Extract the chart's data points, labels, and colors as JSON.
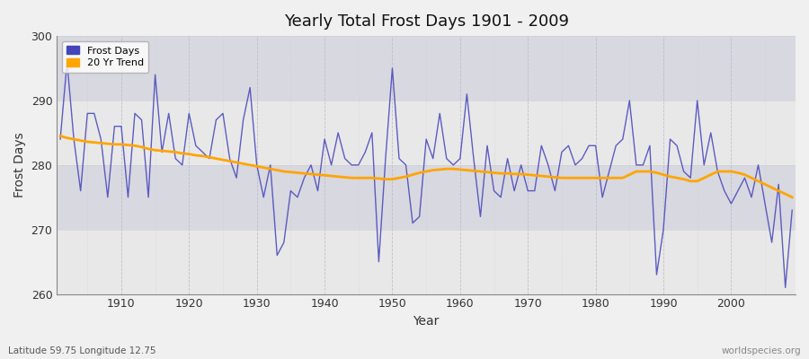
{
  "title": "Yearly Total Frost Days 1901 - 2009",
  "xlabel": "Year",
  "ylabel": "Frost Days",
  "subtitle": "Latitude 59.75 Longitude 12.75",
  "watermark": "worldspecies.org",
  "ylim": [
    260,
    300
  ],
  "xlim": [
    1901,
    2009
  ],
  "line_color": "#4444bb",
  "trend_color": "#FFA500",
  "bg_color": "#f5f5f5",
  "plot_bg": "#ebebeb",
  "plot_bg_alt": "#e0e0e8",
  "years": [
    1901,
    1902,
    1903,
    1904,
    1905,
    1906,
    1907,
    1908,
    1909,
    1910,
    1911,
    1912,
    1913,
    1914,
    1915,
    1916,
    1917,
    1918,
    1919,
    1920,
    1921,
    1922,
    1923,
    1924,
    1925,
    1926,
    1927,
    1928,
    1929,
    1930,
    1931,
    1932,
    1933,
    1934,
    1935,
    1936,
    1937,
    1938,
    1939,
    1940,
    1941,
    1942,
    1943,
    1944,
    1945,
    1946,
    1947,
    1948,
    1949,
    1950,
    1951,
    1952,
    1953,
    1954,
    1955,
    1956,
    1957,
    1958,
    1959,
    1960,
    1961,
    1962,
    1963,
    1964,
    1965,
    1966,
    1967,
    1968,
    1969,
    1970,
    1971,
    1972,
    1973,
    1974,
    1975,
    1976,
    1977,
    1978,
    1979,
    1980,
    1981,
    1982,
    1983,
    1984,
    1985,
    1986,
    1987,
    1988,
    1989,
    1990,
    1991,
    1992,
    1993,
    1994,
    1995,
    1996,
    1997,
    1998,
    1999,
    2000,
    2001,
    2002,
    2003,
    2004,
    2005,
    2006,
    2007,
    2008,
    2009
  ],
  "frost_days": [
    284,
    296,
    284,
    276,
    288,
    288,
    284,
    275,
    286,
    286,
    275,
    288,
    287,
    275,
    294,
    282,
    288,
    281,
    280,
    288,
    283,
    282,
    281,
    287,
    288,
    281,
    278,
    287,
    292,
    280,
    275,
    280,
    266,
    268,
    276,
    275,
    278,
    280,
    276,
    284,
    280,
    285,
    281,
    280,
    280,
    282,
    285,
    265,
    281,
    295,
    281,
    280,
    271,
    272,
    284,
    281,
    288,
    281,
    280,
    281,
    291,
    281,
    272,
    283,
    276,
    275,
    281,
    276,
    280,
    276,
    276,
    283,
    280,
    276,
    282,
    283,
    280,
    281,
    283,
    283,
    275,
    279,
    283,
    284,
    290,
    280,
    280,
    283,
    263,
    270,
    284,
    283,
    279,
    278,
    290,
    280,
    285,
    279,
    276,
    274,
    276,
    278,
    275,
    280,
    274,
    268,
    277,
    261,
    273
  ],
  "trend_years": [
    1901,
    1902,
    1903,
    1904,
    1905,
    1906,
    1907,
    1908,
    1909,
    1910,
    1911,
    1912,
    1913,
    1914,
    1915,
    1916,
    1917,
    1918,
    1919,
    1920,
    1921,
    1922,
    1923,
    1924,
    1925,
    1926,
    1927,
    1928,
    1929,
    1930,
    1931,
    1932,
    1933,
    1934,
    1935,
    1936,
    1937,
    1938,
    1939,
    1940,
    1941,
    1942,
    1943,
    1944,
    1945,
    1946,
    1947,
    1948,
    1949,
    1950,
    1951,
    1952,
    1953,
    1954,
    1955,
    1956,
    1957,
    1958,
    1959,
    1960,
    1961,
    1962,
    1963,
    1964,
    1965,
    1966,
    1967,
    1968,
    1969,
    1970,
    1971,
    1972,
    1973,
    1974,
    1975,
    1976,
    1977,
    1978,
    1979,
    1980,
    1981,
    1982,
    1983,
    1984,
    1985,
    1986,
    1987,
    1988,
    1989,
    1990,
    1991,
    1992,
    1993,
    1994,
    1995,
    1996,
    1997,
    1998,
    1999,
    2000,
    2001,
    2002,
    2003,
    2004,
    2005,
    2006,
    2007,
    2008,
    2009
  ],
  "trend_values": [
    284.5,
    284.2,
    284.0,
    283.8,
    283.6,
    283.5,
    283.4,
    283.3,
    283.2,
    283.2,
    283.1,
    283.0,
    282.8,
    282.5,
    282.3,
    282.2,
    282.1,
    282.0,
    281.8,
    281.7,
    281.5,
    281.4,
    281.2,
    281.0,
    280.8,
    280.6,
    280.4,
    280.2,
    280.0,
    279.8,
    279.6,
    279.4,
    279.2,
    279.0,
    278.9,
    278.8,
    278.7,
    278.6,
    278.5,
    278.4,
    278.3,
    278.2,
    278.1,
    278.0,
    278.0,
    278.0,
    278.0,
    277.9,
    277.8,
    277.8,
    278.0,
    278.2,
    278.5,
    278.8,
    279.0,
    279.2,
    279.3,
    279.4,
    279.4,
    279.3,
    279.2,
    279.1,
    279.0,
    278.9,
    278.8,
    278.7,
    278.7,
    278.6,
    278.6,
    278.5,
    278.4,
    278.3,
    278.2,
    278.1,
    278.0,
    278.0,
    278.0,
    278.0,
    278.0,
    278.0,
    278.0,
    278.0,
    278.0,
    278.0,
    278.5,
    279.0,
    279.0,
    279.0,
    278.8,
    278.5,
    278.2,
    278.0,
    277.8,
    277.5,
    277.5,
    278.0,
    278.5,
    279.0,
    279.0,
    279.0,
    278.8,
    278.5,
    278.0,
    277.5,
    277.0,
    276.5,
    276.0,
    275.5,
    275.0
  ]
}
